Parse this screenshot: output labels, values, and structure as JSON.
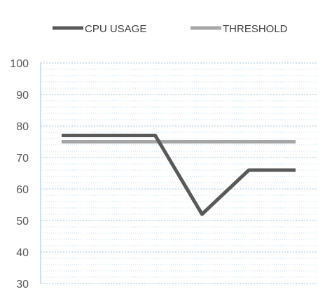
{
  "chart_data": {
    "type": "line",
    "title": "",
    "xlabel": "",
    "ylabel": "",
    "ylim": [
      30,
      100
    ],
    "yticks": [
      30,
      40,
      50,
      60,
      70,
      80,
      90,
      100
    ],
    "grid": true,
    "legend_position": "top",
    "x": [
      1,
      2,
      3,
      4,
      5,
      6
    ],
    "series": [
      {
        "name": "CPU USAGE",
        "color": "#595959",
        "values": [
          77,
          77,
          77,
          52,
          66,
          66
        ]
      },
      {
        "name": "THRESHOLD",
        "color": "#a6a6a6",
        "values": [
          75,
          75,
          75,
          75,
          75,
          75
        ]
      }
    ],
    "gridline_color": "#9dc3e6",
    "axis_color": "#bdd7ee"
  }
}
